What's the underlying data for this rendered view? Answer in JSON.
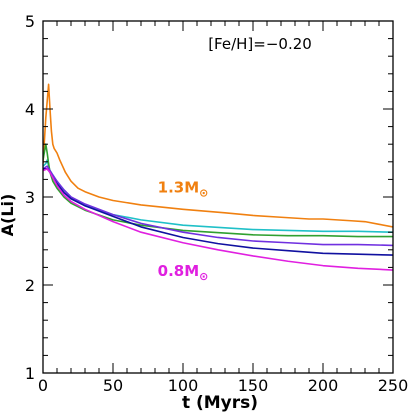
{
  "chart_data": {
    "type": "line",
    "title": "",
    "xlabel": "t (Myrs)",
    "ylabel": "A(Li)",
    "xlim": [
      0,
      250
    ],
    "ylim": [
      1,
      5
    ],
    "x_ticks": [
      0,
      50,
      100,
      150,
      200,
      250
    ],
    "y_ticks": [
      1,
      2,
      3,
      4,
      5
    ],
    "grid": false,
    "annotations": [
      {
        "id": "metallicity",
        "text": "[Fe/H]=−0.20",
        "x": 155,
        "y": 4.68,
        "color": "#000000"
      },
      {
        "id": "mass-high",
        "text": "1.3M",
        "suffix": "⊙",
        "x": 100,
        "y": 3.05,
        "color": "#f08010"
      },
      {
        "id": "mass-low",
        "text": "0.8M",
        "suffix": "⊙",
        "x": 100,
        "y": 2.1,
        "color": "#e020e0"
      }
    ],
    "series": [
      {
        "color": "#f08010",
        "x": [
          0,
          2,
          4,
          5,
          6,
          7,
          8,
          10,
          12,
          14,
          16,
          20,
          25,
          30,
          40,
          50,
          70,
          100,
          130,
          150,
          170,
          190,
          200,
          220,
          230,
          240,
          250
        ],
        "y": [
          3.38,
          3.9,
          4.28,
          4.0,
          3.75,
          3.6,
          3.55,
          3.5,
          3.42,
          3.35,
          3.28,
          3.18,
          3.1,
          3.06,
          3.0,
          2.96,
          2.91,
          2.86,
          2.82,
          2.79,
          2.77,
          2.75,
          2.75,
          2.73,
          2.72,
          2.69,
          2.66
        ]
      },
      {
        "color": "#20c0c8",
        "x": [
          0,
          2,
          3,
          4,
          5,
          7,
          10,
          15,
          20,
          30,
          50,
          70,
          100,
          130,
          150,
          175,
          200,
          225,
          250
        ],
        "y": [
          3.35,
          3.38,
          3.42,
          3.35,
          3.3,
          3.25,
          3.17,
          3.08,
          3.0,
          2.9,
          2.8,
          2.74,
          2.68,
          2.65,
          2.63,
          2.62,
          2.61,
          2.61,
          2.6
        ]
      },
      {
        "color": "#30a030",
        "x": [
          0,
          2,
          3,
          4,
          5,
          7,
          10,
          15,
          20,
          30,
          50,
          70,
          100,
          130,
          150,
          175,
          200,
          225,
          250
        ],
        "y": [
          3.42,
          3.6,
          3.5,
          3.38,
          3.28,
          3.18,
          3.1,
          3.0,
          2.93,
          2.85,
          2.74,
          2.68,
          2.62,
          2.59,
          2.57,
          2.56,
          2.56,
          2.55,
          2.55
        ]
      },
      {
        "color": "#7030e0",
        "x": [
          0,
          3,
          5,
          7,
          10,
          15,
          20,
          30,
          50,
          70,
          100,
          125,
          150,
          175,
          200,
          225,
          250
        ],
        "y": [
          3.32,
          3.35,
          3.3,
          3.25,
          3.18,
          3.08,
          3.0,
          2.92,
          2.8,
          2.7,
          2.6,
          2.54,
          2.5,
          2.48,
          2.46,
          2.46,
          2.45
        ]
      },
      {
        "color": "#1010a0",
        "x": [
          0,
          3,
          5,
          7,
          10,
          15,
          20,
          30,
          50,
          70,
          100,
          125,
          150,
          175,
          200,
          225,
          250
        ],
        "y": [
          3.32,
          3.32,
          3.28,
          3.22,
          3.15,
          3.05,
          2.98,
          2.9,
          2.78,
          2.66,
          2.54,
          2.47,
          2.42,
          2.39,
          2.36,
          2.35,
          2.34
        ]
      },
      {
        "color": "#e020e0",
        "x": [
          0,
          3,
          5,
          7,
          10,
          15,
          20,
          30,
          50,
          70,
          100,
          125,
          150,
          175,
          200,
          225,
          250
        ],
        "y": [
          3.3,
          3.32,
          3.28,
          3.22,
          3.13,
          3.02,
          2.95,
          2.86,
          2.72,
          2.6,
          2.48,
          2.4,
          2.33,
          2.27,
          2.22,
          2.19,
          2.17
        ]
      }
    ]
  }
}
